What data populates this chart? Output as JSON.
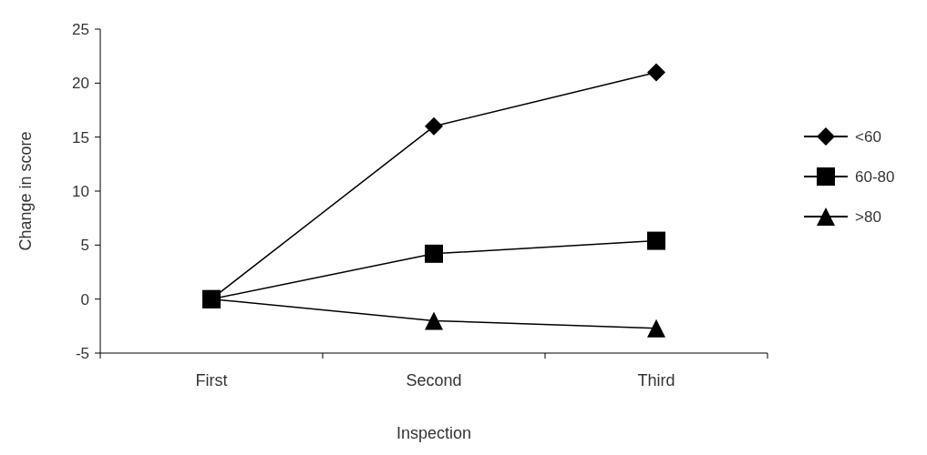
{
  "chart_data": {
    "type": "line",
    "xlabel": "Inspection",
    "ylabel": "Change in score",
    "categories": [
      "First",
      "Second",
      "Third"
    ],
    "series": [
      {
        "name": "<60",
        "color": "#000000",
        "marker": "diamond",
        "values": [
          0,
          16,
          21
        ]
      },
      {
        "name": "60-80",
        "color": "#000000",
        "marker": "square",
        "values": [
          0,
          4.2,
          5.4
        ]
      },
      {
        "name": ">80",
        "color": "#000000",
        "marker": "triangle",
        "values": [
          0,
          -2,
          -2.7
        ]
      }
    ],
    "ylim": [
      -5,
      25
    ],
    "yticks": [
      -5,
      0,
      5,
      10,
      15,
      20,
      25
    ],
    "grid": false,
    "legend": "right"
  }
}
